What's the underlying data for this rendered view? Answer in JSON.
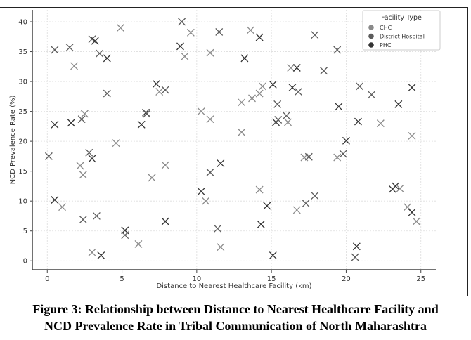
{
  "chart_data": {
    "type": "scatter",
    "title": "",
    "xlabel": "Distance to Nearest Healthcare Facility (km)",
    "ylabel": "NCD Prevalence Rate (%)",
    "xlim": [
      -1,
      26
    ],
    "ylim": [
      -1.5,
      42
    ],
    "xticks": [
      0,
      5,
      10,
      15,
      20,
      25
    ],
    "yticks": [
      0,
      5,
      10,
      15,
      20,
      25,
      30,
      35,
      40
    ],
    "grid": true,
    "marker": "x",
    "legend": {
      "title": "Facility Type",
      "placement": "top-right",
      "entries": [
        "CHC",
        "District Hospital",
        "PHC"
      ]
    },
    "series_colors": [
      "#8a8a8a",
      "#5c5c5c",
      "#333333"
    ],
    "points_format": "[x_km, prevalence_pct, facility_index]",
    "points": [
      [
        0.5,
        35.3,
        1
      ],
      [
        1.5,
        35.7,
        1
      ],
      [
        1.8,
        32.6,
        0
      ],
      [
        3.0,
        37.1,
        1
      ],
      [
        3.2,
        36.8,
        2
      ],
      [
        3.5,
        34.7,
        1
      ],
      [
        4.0,
        33.9,
        2
      ],
      [
        4.9,
        39.0,
        0
      ],
      [
        9.0,
        40.0,
        1
      ],
      [
        9.6,
        38.2,
        0
      ],
      [
        8.9,
        35.9,
        2
      ],
      [
        9.2,
        34.2,
        0
      ],
      [
        10.9,
        34.8,
        0
      ],
      [
        11.5,
        38.3,
        1
      ],
      [
        13.6,
        38.6,
        0
      ],
      [
        14.2,
        37.4,
        2
      ],
      [
        13.2,
        33.9,
        2
      ],
      [
        17.9,
        37.8,
        1
      ],
      [
        19.4,
        35.3,
        1
      ],
      [
        4.0,
        28.0,
        1
      ],
      [
        7.3,
        29.6,
        2
      ],
      [
        7.5,
        28.3,
        0
      ],
      [
        7.9,
        28.6,
        1
      ],
      [
        6.6,
        24.8,
        2
      ],
      [
        6.65,
        24.6,
        1
      ],
      [
        2.5,
        24.6,
        0
      ],
      [
        2.3,
        23.7,
        1
      ],
      [
        0.5,
        22.8,
        2
      ],
      [
        1.6,
        23.1,
        2
      ],
      [
        6.3,
        22.8,
        2
      ],
      [
        4.6,
        19.7,
        0
      ],
      [
        0.1,
        17.5,
        1
      ],
      [
        2.8,
        18.1,
        1
      ],
      [
        3.0,
        17.1,
        2
      ],
      [
        2.2,
        15.9,
        0
      ],
      [
        2.4,
        14.4,
        0
      ],
      [
        7.9,
        16.0,
        0
      ],
      [
        7.0,
        13.9,
        0
      ],
      [
        0.5,
        10.2,
        2
      ],
      [
        1.0,
        9.0,
        0
      ],
      [
        2.4,
        6.9,
        1
      ],
      [
        3.3,
        7.5,
        1
      ],
      [
        5.2,
        5.1,
        2
      ],
      [
        5.2,
        4.3,
        1
      ],
      [
        6.1,
        2.8,
        0
      ],
      [
        3.0,
        1.4,
        0
      ],
      [
        3.6,
        0.9,
        2
      ],
      [
        7.9,
        6.6,
        2
      ],
      [
        10.3,
        25.0,
        0
      ],
      [
        10.9,
        23.7,
        0
      ],
      [
        10.3,
        11.6,
        2
      ],
      [
        10.6,
        10.0,
        0
      ],
      [
        10.9,
        14.8,
        1
      ],
      [
        11.6,
        16.3,
        2
      ],
      [
        11.4,
        5.4,
        1
      ],
      [
        11.6,
        2.3,
        0
      ],
      [
        13.0,
        26.5,
        0
      ],
      [
        13.7,
        27.2,
        0
      ],
      [
        14.2,
        28.0,
        0
      ],
      [
        14.4,
        29.2,
        0
      ],
      [
        15.1,
        29.5,
        2
      ],
      [
        15.4,
        26.2,
        1
      ],
      [
        13.0,
        21.5,
        0
      ],
      [
        14.2,
        11.9,
        0
      ],
      [
        14.7,
        9.2,
        2
      ],
      [
        14.3,
        6.1,
        2
      ],
      [
        15.1,
        0.9,
        2
      ],
      [
        15.3,
        23.2,
        2
      ],
      [
        15.45,
        23.6,
        1
      ],
      [
        16.0,
        24.3,
        1
      ],
      [
        16.1,
        23.2,
        0
      ],
      [
        16.3,
        32.3,
        0
      ],
      [
        16.7,
        32.3,
        2
      ],
      [
        16.4,
        29.0,
        2
      ],
      [
        16.8,
        28.3,
        1
      ],
      [
        18.5,
        31.8,
        1
      ],
      [
        17.2,
        17.3,
        0
      ],
      [
        17.5,
        17.4,
        1
      ],
      [
        16.7,
        8.5,
        0
      ],
      [
        17.3,
        9.6,
        1
      ],
      [
        17.9,
        10.9,
        1
      ],
      [
        19.4,
        17.3,
        0
      ],
      [
        19.8,
        17.9,
        1
      ],
      [
        20.0,
        20.1,
        2
      ],
      [
        19.5,
        25.8,
        2
      ],
      [
        20.9,
        29.2,
        1
      ],
      [
        21.7,
        27.8,
        1
      ],
      [
        22.3,
        23.0,
        0
      ],
      [
        20.8,
        23.3,
        2
      ],
      [
        23.5,
        26.2,
        2
      ],
      [
        24.4,
        29.0,
        2
      ],
      [
        24.4,
        20.9,
        0
      ],
      [
        23.1,
        12.0,
        2
      ],
      [
        23.3,
        12.5,
        2
      ],
      [
        23.6,
        12.1,
        0
      ],
      [
        24.1,
        9.0,
        0
      ],
      [
        24.4,
        8.1,
        2
      ],
      [
        24.7,
        6.6,
        0
      ],
      [
        20.7,
        2.4,
        2
      ],
      [
        20.6,
        0.6,
        1
      ]
    ]
  },
  "caption": {
    "line1": "Figure 3: Relationship between Distance to Nearest Healthcare Facility and",
    "line2": "NCD Prevalence Rate in Tribal Communication of North Maharashtra"
  }
}
